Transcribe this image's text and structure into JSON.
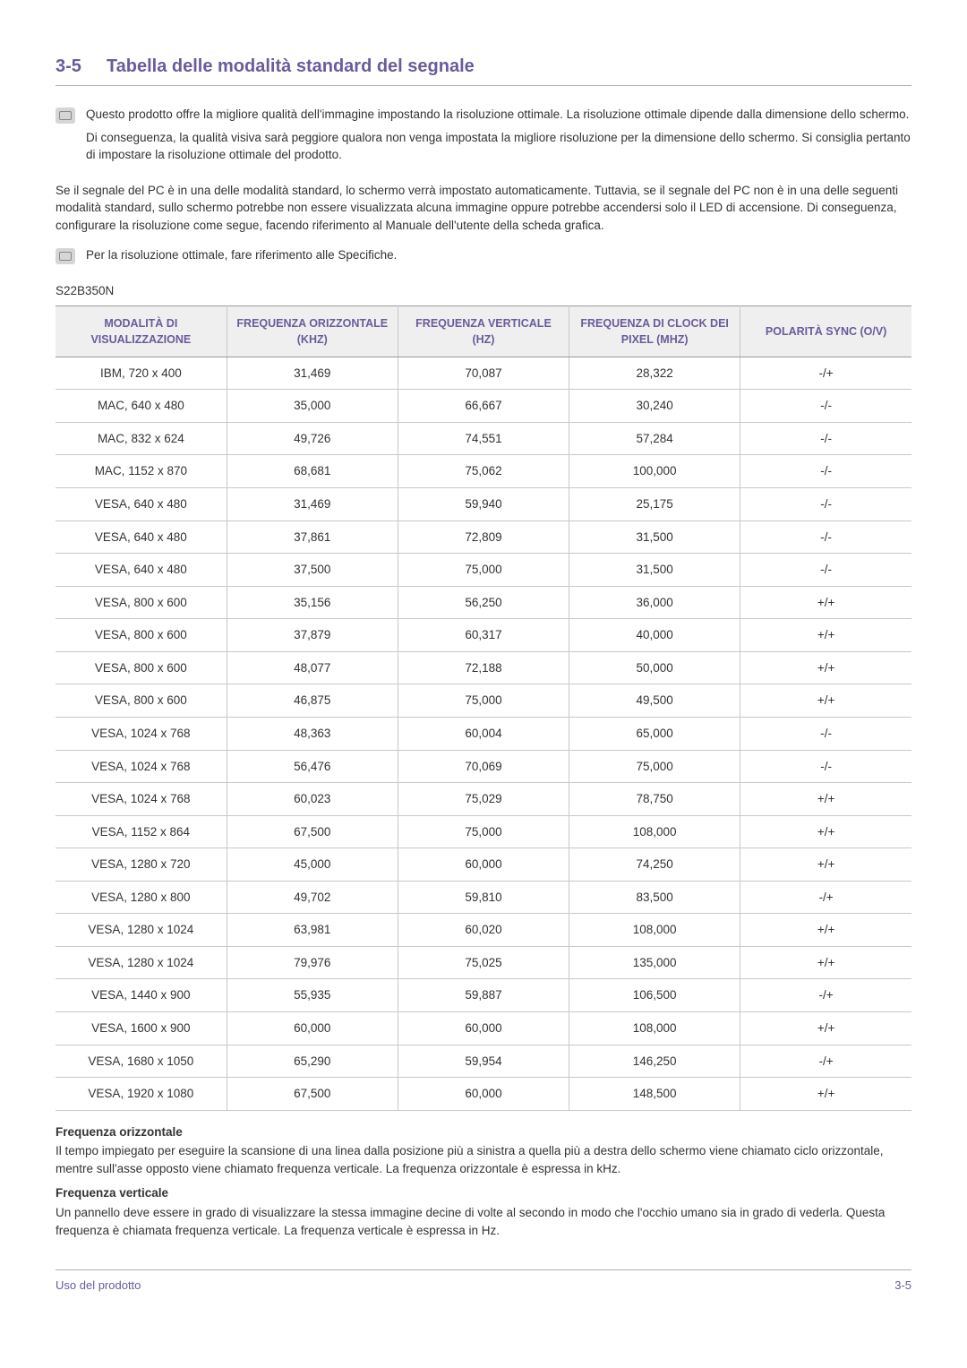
{
  "section": {
    "number": "3-5",
    "title": "Tabella delle modalità standard del segnale"
  },
  "note1": {
    "p1": "Questo prodotto offre la migliore qualità dell'immagine impostando la risoluzione ottimale. La risoluzione ottimale dipende dalla dimensione dello schermo.",
    "p2": "Di conseguenza, la qualità visiva sarà peggiore qualora non venga impostata la migliore risoluzione per la dimensione dello schermo. Si consiglia pertanto di impostare la risoluzione ottimale del prodotto."
  },
  "paragraph": "Se il segnale del PC è in una delle modalità standard, lo schermo verrà impostato automaticamente. Tuttavia, se il segnale del PC non è in una delle seguenti modalità standard, sullo schermo potrebbe non essere visualizzata alcuna immagine oppure potrebbe accendersi solo il LED di accensione. Di conseguenza, configurare la risoluzione come segue, facendo riferimento al Manuale dell'utente della scheda grafica.",
  "note2": {
    "p1": "Per la risoluzione ottimale, fare riferimento alle Specifiche."
  },
  "model": "S22B350N",
  "table": {
    "header_bg": "#efefef",
    "header_color": "#6a5b9a",
    "border_color": "#c8c8c8",
    "columns": [
      "MODALITÀ DI VISUALIZZAZIONE",
      "FREQUENZA ORIZZONTALE (KHZ)",
      "FREQUENZA VERTICALE (HZ)",
      "FREQUENZA DI CLOCK DEI PIXEL (MHZ)",
      "POLARITÀ SYNC (O/V)"
    ],
    "rows": [
      [
        "IBM, 720 x 400",
        "31,469",
        "70,087",
        "28,322",
        "-/+"
      ],
      [
        "MAC, 640 x 480",
        "35,000",
        "66,667",
        "30,240",
        "-/-"
      ],
      [
        "MAC, 832 x 624",
        "49,726",
        "74,551",
        "57,284",
        "-/-"
      ],
      [
        "MAC, 1152 x 870",
        "68,681",
        "75,062",
        "100,000",
        "-/-"
      ],
      [
        "VESA, 640 x 480",
        "31,469",
        "59,940",
        "25,175",
        "-/-"
      ],
      [
        "VESA, 640 x 480",
        "37,861",
        "72,809",
        "31,500",
        "-/-"
      ],
      [
        "VESA, 640 x 480",
        "37,500",
        "75,000",
        "31,500",
        "-/-"
      ],
      [
        "VESA, 800 x 600",
        "35,156",
        "56,250",
        "36,000",
        "+/+"
      ],
      [
        "VESA, 800 x 600",
        "37,879",
        "60,317",
        "40,000",
        "+/+"
      ],
      [
        "VESA, 800 x 600",
        "48,077",
        "72,188",
        "50,000",
        "+/+"
      ],
      [
        "VESA, 800 x 600",
        "46,875",
        "75,000",
        "49,500",
        "+/+"
      ],
      [
        "VESA, 1024 x 768",
        "48,363",
        "60,004",
        "65,000",
        "-/-"
      ],
      [
        "VESA, 1024 x 768",
        "56,476",
        "70,069",
        "75,000",
        "-/-"
      ],
      [
        "VESA, 1024 x 768",
        "60,023",
        "75,029",
        "78,750",
        "+/+"
      ],
      [
        "VESA, 1152 x 864",
        "67,500",
        "75,000",
        "108,000",
        "+/+"
      ],
      [
        "VESA, 1280 x 720",
        "45,000",
        "60,000",
        "74,250",
        "+/+"
      ],
      [
        "VESA, 1280 x 800",
        "49,702",
        "59,810",
        "83,500",
        "-/+"
      ],
      [
        "VESA, 1280 x 1024",
        "63,981",
        "60,020",
        "108,000",
        "+/+"
      ],
      [
        "VESA, 1280 x 1024",
        "79,976",
        "75,025",
        "135,000",
        "+/+"
      ],
      [
        "VESA, 1440 x 900",
        "55,935",
        "59,887",
        "106,500",
        "-/+"
      ],
      [
        "VESA, 1600 x 900",
        "60,000",
        "60,000",
        "108,000",
        "+/+"
      ],
      [
        "VESA, 1680 x 1050",
        "65,290",
        "59,954",
        "146,250",
        "-/+"
      ],
      [
        "VESA, 1920 x 1080",
        "67,500",
        "60,000",
        "148,500",
        "+/+"
      ]
    ]
  },
  "defs": {
    "h1": "Frequenza orizzontale",
    "p1": "Il tempo impiegato per eseguire la scansione di una linea dalla posizione più a sinistra a quella più a destra dello schermo viene chiamato ciclo orizzontale, mentre sull'asse opposto viene chiamato frequenza verticale. La frequenza orizzontale è espressa in kHz.",
    "h2": "Frequenza verticale",
    "p2": "Un pannello deve essere in grado di visualizzare la stessa immagine decine di volte al secondo in modo che l'occhio umano sia in grado di vederla. Questa frequenza è chiamata frequenza verticale. La frequenza verticale è espressa in Hz."
  },
  "footer": {
    "left": "Uso del prodotto",
    "right": "3-5"
  }
}
